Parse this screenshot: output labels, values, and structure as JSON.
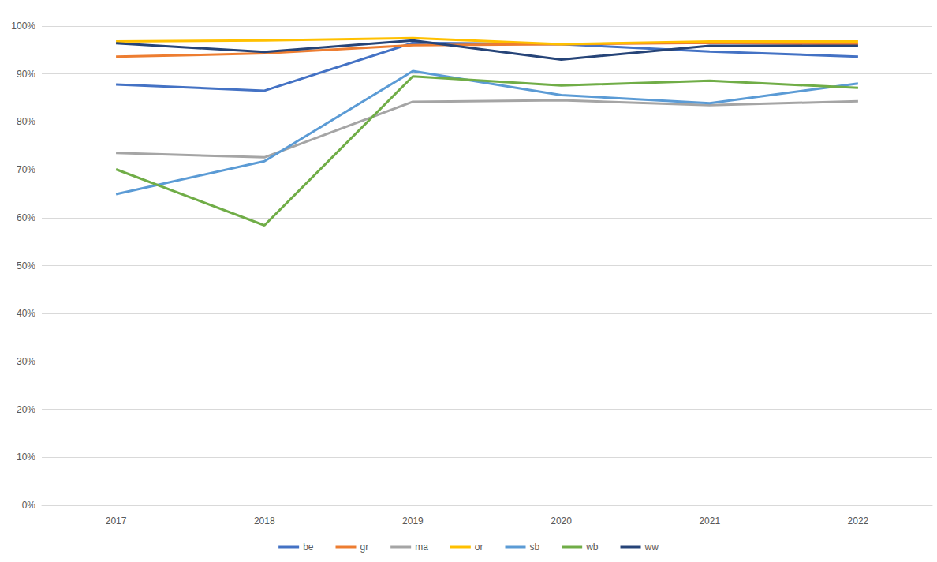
{
  "chart_data": {
    "type": "line",
    "categories": [
      "2017",
      "2018",
      "2019",
      "2020",
      "2021",
      "2022"
    ],
    "series": [
      {
        "name": "be",
        "color": "#4472c4",
        "values": [
          87.8,
          86.5,
          96.5,
          96.2,
          94.7,
          93.6
        ]
      },
      {
        "name": "gr",
        "color": "#ed7d31",
        "values": [
          93.6,
          94.3,
          96.0,
          96.2,
          96.5,
          96.2
        ]
      },
      {
        "name": "ma",
        "color": "#a5a5a5",
        "values": [
          73.5,
          72.6,
          84.2,
          84.5,
          83.5,
          84.3
        ]
      },
      {
        "name": "or",
        "color": "#ffc000",
        "values": [
          96.8,
          97.0,
          97.5,
          96.2,
          96.8,
          96.8
        ]
      },
      {
        "name": "sb",
        "color": "#5b9bd5",
        "values": [
          64.9,
          71.8,
          90.6,
          85.6,
          83.9,
          88.0
        ]
      },
      {
        "name": "wb",
        "color": "#70ad47",
        "values": [
          70.1,
          58.4,
          89.5,
          87.6,
          88.6,
          87.1
        ]
      },
      {
        "name": "ww",
        "color": "#264478",
        "values": [
          96.4,
          94.6,
          97.0,
          93.0,
          95.9,
          95.9
        ]
      }
    ],
    "ylim": [
      0,
      100
    ],
    "yticks": [
      {
        "value": 0,
        "label": "0%"
      },
      {
        "value": 10,
        "label": "10%"
      },
      {
        "value": 20,
        "label": "20%"
      },
      {
        "value": 30,
        "label": "30%"
      },
      {
        "value": 40,
        "label": "40%"
      },
      {
        "value": 50,
        "label": "50%"
      },
      {
        "value": 60,
        "label": "60%"
      },
      {
        "value": 70,
        "label": "70%"
      },
      {
        "value": 80,
        "label": "80%"
      },
      {
        "value": 90,
        "label": "90%"
      },
      {
        "value": 100,
        "label": "100%"
      }
    ],
    "grid": true,
    "legend": "bottom"
  }
}
